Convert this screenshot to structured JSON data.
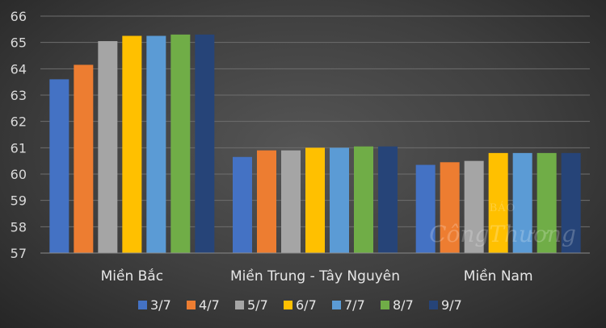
{
  "chart_data": {
    "type": "bar",
    "title": "",
    "xlabel": "",
    "ylabel": "",
    "ylim": [
      57,
      66
    ],
    "yticks": [
      57,
      58,
      59,
      60,
      61,
      62,
      63,
      64,
      65,
      66
    ],
    "grid": true,
    "legend_position": "bottom",
    "categories": [
      "Miền Bắc",
      "Miền Trung - Tây Nguyên",
      "Miền Nam"
    ],
    "series": [
      {
        "name": "3/7",
        "color": "#4472c4",
        "values": [
          63.6,
          60.65,
          60.35
        ]
      },
      {
        "name": "4/7",
        "color": "#ed7d31",
        "values": [
          64.15,
          60.9,
          60.45
        ]
      },
      {
        "name": "5/7",
        "color": "#a5a5a5",
        "values": [
          65.05,
          60.9,
          60.5
        ]
      },
      {
        "name": "6/7",
        "color": "#ffc000",
        "values": [
          65.25,
          61.0,
          60.8
        ]
      },
      {
        "name": "7/7",
        "color": "#5b9bd5",
        "values": [
          65.25,
          61.0,
          60.8
        ]
      },
      {
        "name": "8/7",
        "color": "#70ad47",
        "values": [
          65.3,
          61.05,
          60.8
        ]
      },
      {
        "name": "9/7",
        "color": "#264478",
        "values": [
          65.3,
          61.05,
          60.8
        ]
      }
    ]
  },
  "watermark": {
    "line1": "BÁO",
    "line2": "CôngThương"
  }
}
